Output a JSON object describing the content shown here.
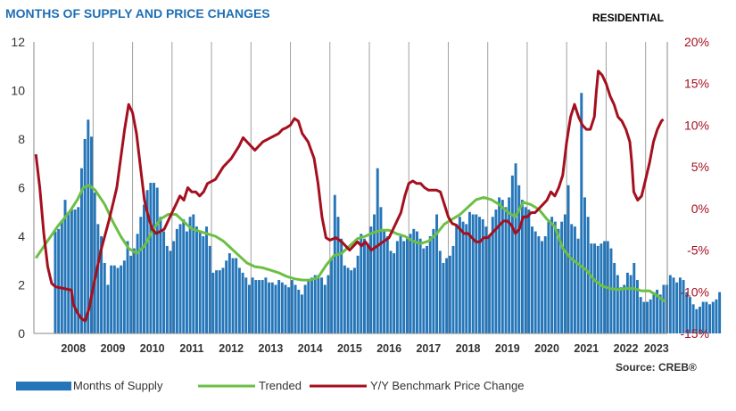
{
  "title": "MONTHS OF SUPPLY AND PRICE CHANGES",
  "subtitle": "RESIDENTIAL",
  "source": "Source: CREB®",
  "colors": {
    "title": "#1f6fb4",
    "bars": "#2576b9",
    "trend": "#6cbf45",
    "price": "#a50f1e",
    "grid": "#a0a0a0"
  },
  "chart_data": {
    "type": "bar",
    "title": "MONTHS OF SUPPLY AND PRICE CHANGES",
    "left_axis": {
      "label": "Months of Supply",
      "ylim": [
        0,
        12
      ],
      "ticks": [
        "0",
        "2",
        "4",
        "6",
        "8",
        "10",
        "12"
      ]
    },
    "right_axis": {
      "label": "Y/Y Benchmark Price Change",
      "ylim": [
        -15,
        20
      ],
      "ticks": [
        "-15%",
        "-10%",
        "-5%",
        "0%",
        "5%",
        "10%",
        "15%",
        "20%"
      ]
    },
    "years": [
      "2008",
      "2009",
      "2010",
      "2011",
      "2012",
      "2013",
      "2014",
      "2015",
      "2016",
      "2017",
      "2018",
      "2019",
      "2020",
      "2021",
      "2022",
      "2023"
    ],
    "legend": [
      "Months of Supply",
      "Trended",
      "Y/Y Benchmark Price Change"
    ],
    "series": [
      {
        "name": "Months of Supply",
        "type": "bar",
        "axis": "left",
        "values": [
          4.2,
          4.3,
          4.6,
          5.5,
          5.0,
          5.1,
          5.1,
          5.2,
          6.8,
          8.0,
          8.8,
          8.1,
          5.8,
          4.5,
          4.0,
          2.9,
          2.0,
          2.8,
          2.8,
          2.7,
          2.8,
          3.0,
          3.8,
          3.2,
          3.5,
          4.1,
          4.8,
          5.3,
          5.9,
          6.2,
          6.2,
          6.0,
          4.8,
          4.2,
          3.6,
          3.4,
          3.8,
          4.3,
          4.5,
          4.7,
          4.2,
          4.8,
          4.9,
          4.4,
          4.2,
          4.0,
          4.4,
          3.6,
          2.5,
          2.6,
          2.6,
          2.7,
          3.0,
          3.3,
          3.1,
          3.1,
          2.7,
          2.5,
          2.3,
          2.0,
          2.3,
          2.2,
          2.2,
          2.2,
          2.3,
          2.1,
          2.1,
          2.0,
          2.2,
          2.1,
          2.0,
          1.9,
          2.2,
          2.0,
          1.8,
          1.6,
          2.0,
          2.2,
          2.3,
          2.4,
          2.4,
          2.3,
          2.0,
          2.4,
          3.1,
          5.7,
          4.8,
          3.9,
          2.8,
          2.7,
          2.6,
          2.7,
          3.2,
          4.1,
          3.9,
          3.7,
          4.4,
          4.9,
          6.8,
          5.2,
          4.2,
          4.0,
          3.4,
          3.3,
          3.8,
          4.0,
          3.8,
          3.9,
          4.1,
          4.3,
          4.2,
          3.9,
          3.5,
          3.6,
          4.0,
          4.3,
          4.9,
          3.4,
          2.9,
          3.1,
          3.2,
          3.6,
          4.5,
          4.8,
          4.6,
          4.5,
          5.0,
          4.9,
          4.9,
          4.8,
          4.7,
          4.4,
          4.0,
          4.8,
          5.1,
          5.6,
          5.5,
          5.2,
          5.6,
          6.5,
          7.0,
          6.1,
          5.5,
          5.2,
          5.1,
          4.4,
          4.2,
          4.0,
          3.8,
          4.0,
          4.6,
          4.8,
          4.6,
          4.3,
          4.6,
          4.9,
          6.1,
          4.5,
          4.4,
          3.9,
          9.9,
          5.6,
          4.8,
          3.7,
          3.7,
          3.6,
          3.7,
          3.8,
          3.8,
          3.5,
          2.9,
          2.4,
          1.9,
          2.0,
          2.5,
          2.4,
          2.9,
          2.2,
          1.5,
          1.3,
          1.3,
          1.4,
          1.7,
          1.8,
          1.6,
          2.0,
          2.0,
          2.4,
          2.3,
          2.1,
          2.3,
          2.2,
          1.7,
          1.5,
          1.2,
          1.0,
          1.1,
          1.3,
          1.3,
          1.2,
          1.3,
          1.4,
          1.7
        ]
      },
      {
        "name": "Trended",
        "type": "line",
        "axis": "left",
        "points": [
          [
            2007.55,
            3.1
          ],
          [
            2007.8,
            3.7
          ],
          [
            2008.1,
            4.4
          ],
          [
            2008.4,
            5.0
          ],
          [
            2008.6,
            5.5
          ],
          [
            2008.75,
            6.0
          ],
          [
            2008.9,
            6.1
          ],
          [
            2009.05,
            5.9
          ],
          [
            2009.3,
            5.3
          ],
          [
            2009.5,
            4.6
          ],
          [
            2009.7,
            4.0
          ],
          [
            2009.9,
            3.5
          ],
          [
            2010.1,
            3.3
          ],
          [
            2010.3,
            3.6
          ],
          [
            2010.5,
            4.2
          ],
          [
            2010.7,
            4.7
          ],
          [
            2010.9,
            4.9
          ],
          [
            2011.1,
            4.9
          ],
          [
            2011.3,
            4.6
          ],
          [
            2011.5,
            4.3
          ],
          [
            2011.7,
            4.2
          ],
          [
            2011.9,
            4.1
          ],
          [
            2012.1,
            4.0
          ],
          [
            2012.3,
            3.8
          ],
          [
            2012.5,
            3.5
          ],
          [
            2012.7,
            3.2
          ],
          [
            2012.9,
            2.9
          ],
          [
            2013.1,
            2.75
          ],
          [
            2013.3,
            2.7
          ],
          [
            2013.5,
            2.6
          ],
          [
            2013.7,
            2.5
          ],
          [
            2013.9,
            2.35
          ],
          [
            2014.1,
            2.25
          ],
          [
            2014.3,
            2.2
          ],
          [
            2014.5,
            2.2
          ],
          [
            2014.7,
            2.3
          ],
          [
            2014.9,
            2.8
          ],
          [
            2015.1,
            3.2
          ],
          [
            2015.3,
            3.3
          ],
          [
            2015.5,
            3.6
          ],
          [
            2015.7,
            3.9
          ],
          [
            2015.9,
            4.0
          ],
          [
            2016.1,
            4.15
          ],
          [
            2016.3,
            4.25
          ],
          [
            2016.5,
            4.25
          ],
          [
            2016.7,
            4.1
          ],
          [
            2016.9,
            4.0
          ],
          [
            2017.1,
            3.8
          ],
          [
            2017.3,
            3.7
          ],
          [
            2017.5,
            3.8
          ],
          [
            2017.7,
            4.1
          ],
          [
            2017.9,
            4.5
          ],
          [
            2018.1,
            4.7
          ],
          [
            2018.3,
            4.9
          ],
          [
            2018.5,
            5.2
          ],
          [
            2018.7,
            5.5
          ],
          [
            2018.9,
            5.6
          ],
          [
            2019.1,
            5.5
          ],
          [
            2019.3,
            5.3
          ],
          [
            2019.5,
            5.0
          ],
          [
            2019.7,
            4.8
          ],
          [
            2019.9,
            5.4
          ],
          [
            2020.1,
            5.3
          ],
          [
            2020.3,
            5.1
          ],
          [
            2020.5,
            4.7
          ],
          [
            2020.7,
            4.4
          ],
          [
            2020.9,
            3.5
          ],
          [
            2021.1,
            3.1
          ],
          [
            2021.3,
            2.85
          ],
          [
            2021.5,
            2.6
          ],
          [
            2021.7,
            2.2
          ],
          [
            2021.9,
            1.95
          ],
          [
            2022.1,
            1.85
          ],
          [
            2022.3,
            1.8
          ],
          [
            2022.5,
            1.85
          ],
          [
            2022.7,
            1.85
          ],
          [
            2022.9,
            1.75
          ],
          [
            2023.1,
            1.75
          ],
          [
            2023.3,
            1.55
          ],
          [
            2023.45,
            1.35
          ],
          [
            2023.5,
            1.35
          ]
        ]
      },
      {
        "name": "Y/Y Benchmark Price Change",
        "type": "line",
        "axis": "right",
        "points": [
          [
            2007.55,
            6.5
          ],
          [
            2007.65,
            2.5
          ],
          [
            2007.75,
            -3.0
          ],
          [
            2007.85,
            -7.0
          ],
          [
            2007.95,
            -9.0
          ],
          [
            2008.05,
            -9.4
          ],
          [
            2008.25,
            -9.6
          ],
          [
            2008.45,
            -9.8
          ],
          [
            2008.5,
            -11.5
          ],
          [
            2008.6,
            -12.5
          ],
          [
            2008.7,
            -13.2
          ],
          [
            2008.8,
            -13.5
          ],
          [
            2008.9,
            -12.0
          ],
          [
            2009.0,
            -9.5
          ],
          [
            2009.2,
            -5.0
          ],
          [
            2009.4,
            -1.5
          ],
          [
            2009.5,
            0.5
          ],
          [
            2009.6,
            2.5
          ],
          [
            2009.7,
            6.0
          ],
          [
            2009.8,
            9.5
          ],
          [
            2009.9,
            12.5
          ],
          [
            2010.0,
            11.5
          ],
          [
            2010.1,
            9.0
          ],
          [
            2010.2,
            5.0
          ],
          [
            2010.3,
            1.0
          ],
          [
            2010.4,
            -1.0
          ],
          [
            2010.5,
            -2.5
          ],
          [
            2010.6,
            -3.0
          ],
          [
            2010.8,
            -2.5
          ],
          [
            2010.9,
            -1.5
          ],
          [
            2011.0,
            -0.5
          ],
          [
            2011.1,
            0.5
          ],
          [
            2011.2,
            1.5
          ],
          [
            2011.3,
            1.0
          ],
          [
            2011.4,
            2.5
          ],
          [
            2011.5,
            2.0
          ],
          [
            2011.6,
            2.0
          ],
          [
            2011.7,
            1.5
          ],
          [
            2011.8,
            2.0
          ],
          [
            2011.9,
            3.0
          ],
          [
            2012.1,
            3.5
          ],
          [
            2012.3,
            5.0
          ],
          [
            2012.5,
            6.0
          ],
          [
            2012.7,
            7.5
          ],
          [
            2012.8,
            8.5
          ],
          [
            2012.9,
            8.0
          ],
          [
            2013.0,
            7.5
          ],
          [
            2013.1,
            7.0
          ],
          [
            2013.3,
            8.0
          ],
          [
            2013.5,
            8.5
          ],
          [
            2013.7,
            9.0
          ],
          [
            2013.8,
            9.5
          ],
          [
            2013.9,
            9.7
          ],
          [
            2014.0,
            10.0
          ],
          [
            2014.1,
            10.8
          ],
          [
            2014.2,
            10.5
          ],
          [
            2014.3,
            9.0
          ],
          [
            2014.45,
            8.0
          ],
          [
            2014.6,
            6.0
          ],
          [
            2014.7,
            3.0
          ],
          [
            2014.8,
            -1.0
          ],
          [
            2014.9,
            -3.5
          ],
          [
            2015.0,
            -3.8
          ],
          [
            2015.15,
            -3.5
          ],
          [
            2015.3,
            -4.0
          ],
          [
            2015.5,
            -5.0
          ],
          [
            2015.7,
            -4.0
          ],
          [
            2015.8,
            -4.5
          ],
          [
            2015.9,
            -4.0
          ],
          [
            2016.05,
            -5.0
          ],
          [
            2016.2,
            -4.5
          ],
          [
            2016.35,
            -4.0
          ],
          [
            2016.5,
            -3.5
          ],
          [
            2016.65,
            -2.0
          ],
          [
            2016.8,
            -0.5
          ],
          [
            2016.9,
            1.5
          ],
          [
            2017.0,
            3.0
          ],
          [
            2017.1,
            3.3
          ],
          [
            2017.2,
            3.0
          ],
          [
            2017.3,
            3.0
          ],
          [
            2017.4,
            2.5
          ],
          [
            2017.5,
            2.2
          ],
          [
            2017.7,
            2.2
          ],
          [
            2017.8,
            2.0
          ],
          [
            2017.9,
            0.5
          ],
          [
            2018.0,
            -1.0
          ],
          [
            2018.1,
            -1.8
          ],
          [
            2018.2,
            -2.0
          ],
          [
            2018.3,
            -2.5
          ],
          [
            2018.4,
            -3.0
          ],
          [
            2018.5,
            -3.0
          ],
          [
            2018.6,
            -3.5
          ],
          [
            2018.7,
            -4.0
          ],
          [
            2018.8,
            -4.0
          ],
          [
            2018.9,
            -3.5
          ],
          [
            2019.0,
            -3.5
          ],
          [
            2019.1,
            -3.0
          ],
          [
            2019.2,
            -2.5
          ],
          [
            2019.3,
            -2.0
          ],
          [
            2019.4,
            -1.5
          ],
          [
            2019.5,
            -1.5
          ],
          [
            2019.6,
            -2.0
          ],
          [
            2019.7,
            -3.0
          ],
          [
            2019.8,
            -2.5
          ],
          [
            2019.9,
            -1.0
          ],
          [
            2020.0,
            -1.0
          ],
          [
            2020.1,
            -0.5
          ],
          [
            2020.2,
            -0.5
          ],
          [
            2020.3,
            0.0
          ],
          [
            2020.4,
            0.5
          ],
          [
            2020.5,
            1.0
          ],
          [
            2020.6,
            2.0
          ],
          [
            2020.7,
            1.5
          ],
          [
            2020.8,
            2.5
          ],
          [
            2020.9,
            4.0
          ],
          [
            2021.0,
            8.0
          ],
          [
            2021.1,
            11.0
          ],
          [
            2021.2,
            12.5
          ],
          [
            2021.3,
            11.0
          ],
          [
            2021.4,
            10.0
          ],
          [
            2021.5,
            9.5
          ],
          [
            2021.6,
            9.5
          ],
          [
            2021.7,
            11.0
          ],
          [
            2021.75,
            14.0
          ],
          [
            2021.8,
            16.5
          ],
          [
            2021.9,
            16.0
          ],
          [
            2022.0,
            15.0
          ],
          [
            2022.1,
            13.5
          ],
          [
            2022.2,
            12.5
          ],
          [
            2022.3,
            11.0
          ],
          [
            2022.4,
            10.5
          ],
          [
            2022.5,
            9.5
          ],
          [
            2022.6,
            8.0
          ],
          [
            2022.65,
            5.5
          ],
          [
            2022.7,
            2.0
          ],
          [
            2022.8,
            1.0
          ],
          [
            2022.9,
            1.5
          ],
          [
            2023.0,
            3.5
          ],
          [
            2023.1,
            5.5
          ],
          [
            2023.2,
            8.0
          ],
          [
            2023.3,
            9.5
          ],
          [
            2023.4,
            10.5
          ],
          [
            2023.45,
            10.7
          ]
        ]
      }
    ]
  }
}
